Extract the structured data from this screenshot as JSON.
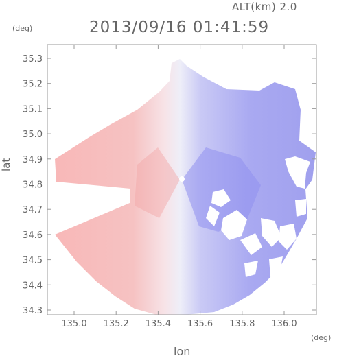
{
  "header": {
    "altitude_label": "ALT(km) 2.0",
    "timestamp": "2013/09/16 01:41:59"
  },
  "axes": {
    "y_unit": "(deg)",
    "x_unit": "(deg)",
    "y_label": "lat",
    "x_label": "lon",
    "y_ticks": [
      "34.3",
      "34.4",
      "34.5",
      "34.6",
      "34.7",
      "34.8",
      "34.9",
      "35.0",
      "35.1",
      "35.2",
      "35.3"
    ],
    "x_ticks": [
      "135.0",
      "135.2",
      "135.4",
      "135.6",
      "135.8",
      "136.0"
    ]
  },
  "map": {
    "radar_center_lon": 135.53,
    "radar_center_lat": 34.81,
    "colors": {
      "approaching": "#f3b4b4",
      "receding": "#9f9ff0",
      "neutral": "#eeeef8"
    }
  }
}
